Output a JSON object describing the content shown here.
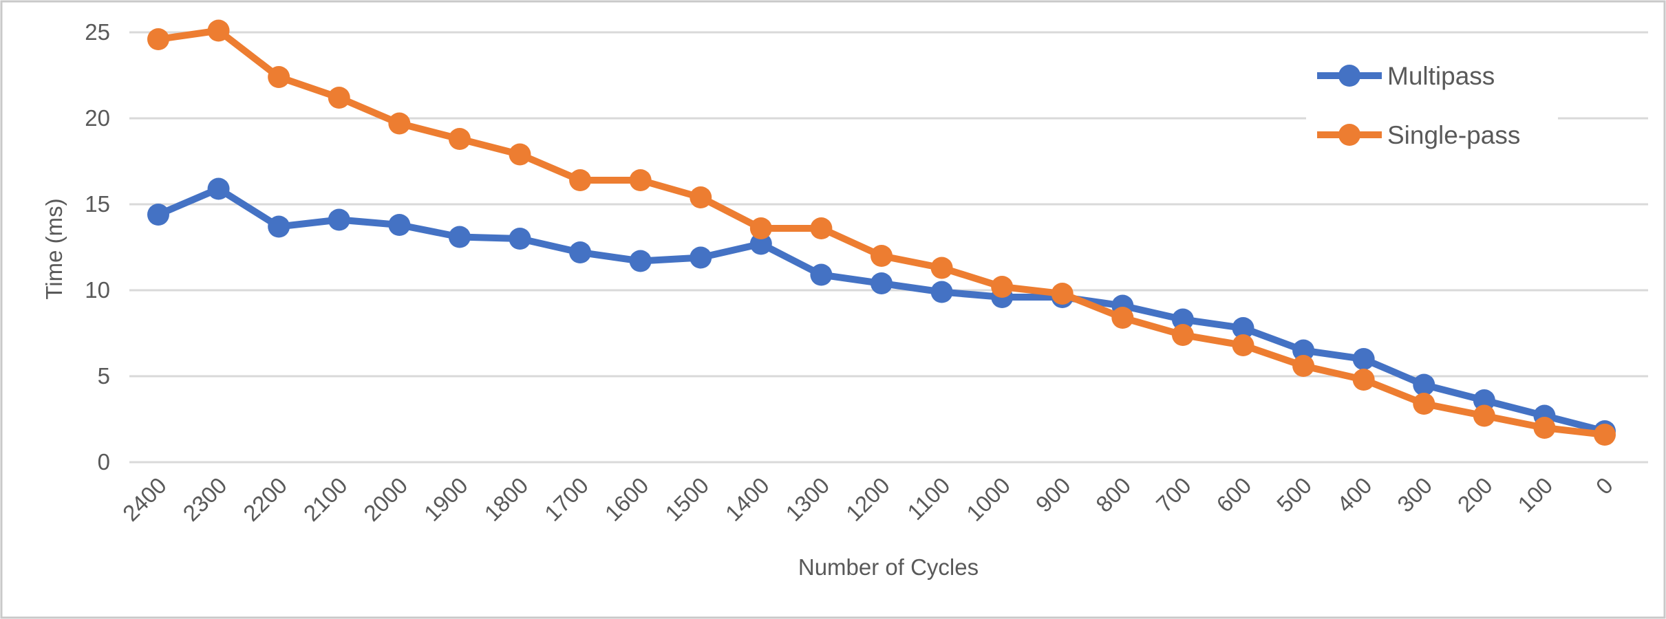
{
  "chart_data": {
    "type": "line",
    "title": "",
    "xlabel": "Number of Cycles",
    "ylabel": "Time (ms)",
    "categories": [
      2400,
      2300,
      2200,
      2100,
      2000,
      1900,
      1800,
      1700,
      1600,
      1500,
      1400,
      1300,
      1200,
      1100,
      1000,
      900,
      800,
      700,
      600,
      500,
      400,
      300,
      200,
      100,
      0
    ],
    "series": [
      {
        "name": "Multipass",
        "color": "#4472C4",
        "values": [
          14.4,
          15.9,
          13.7,
          14.1,
          13.8,
          13.1,
          13.0,
          12.2,
          11.7,
          11.9,
          12.7,
          10.9,
          10.4,
          9.9,
          9.6,
          9.6,
          9.1,
          8.3,
          7.8,
          6.5,
          6.0,
          4.5,
          3.6,
          2.7,
          1.8
        ]
      },
      {
        "name": "Single-pass",
        "color": "#ED7D31",
        "values": [
          24.6,
          25.1,
          22.4,
          21.2,
          19.7,
          18.8,
          17.9,
          16.4,
          16.4,
          15.4,
          13.6,
          13.6,
          12.0,
          11.3,
          10.2,
          9.8,
          8.4,
          7.4,
          6.8,
          5.6,
          4.8,
          3.4,
          2.7,
          2.0,
          1.6
        ]
      }
    ],
    "ylim": [
      0,
      25
    ],
    "yticks": [
      0,
      5,
      10,
      15,
      20,
      25
    ],
    "grid": true,
    "legend_position": "top-right"
  },
  "colors": {
    "grid": "#D9D9D9",
    "axis_text": "#595959",
    "frame": "#C9C9C9",
    "background": "#FFFFFF"
  }
}
